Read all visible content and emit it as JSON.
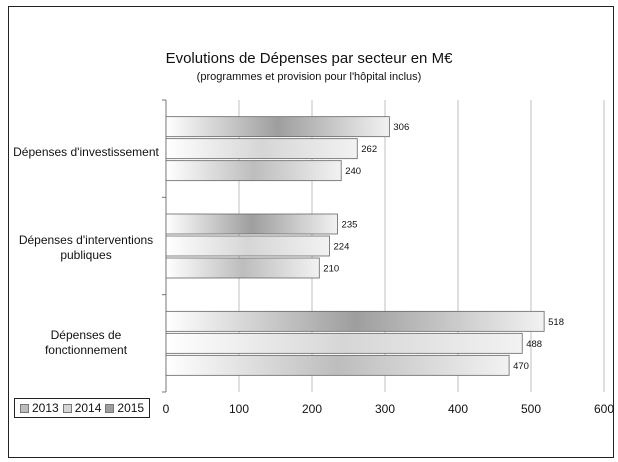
{
  "chart_data": {
    "type": "bar",
    "orientation": "horizontal",
    "title": "Evolutions de Dépenses par secteur en M€",
    "subtitle": "(programmes et provision pour l'hôpital inclus)",
    "categories": [
      "Dépenses d'investissement",
      "Dépenses d'interventions publiques",
      "Dépenses de fonctionnement"
    ],
    "series": [
      {
        "name": "2013",
        "values": [
          240,
          210,
          470
        ],
        "color": "#bdbdbd"
      },
      {
        "name": "2014",
        "values": [
          262,
          224,
          488
        ],
        "color": "#d6d6d6"
      },
      {
        "name": "2015",
        "values": [
          306,
          235,
          518
        ],
        "color": "#9e9e9e"
      }
    ],
    "xticks": [
      "0",
      "100",
      "200",
      "300",
      "400",
      "500",
      "600"
    ],
    "xlim": [
      0,
      600
    ],
    "grid": true,
    "legend": "bottom-left"
  }
}
